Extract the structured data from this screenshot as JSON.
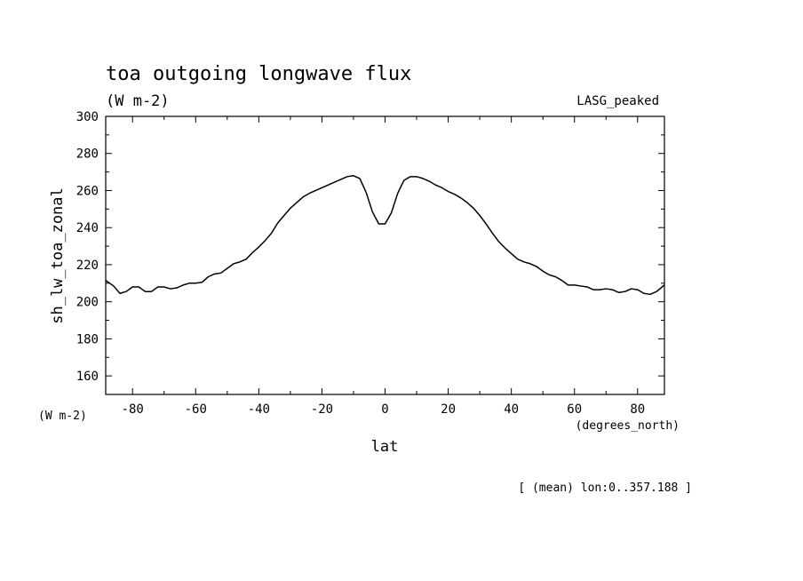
{
  "chart_data": {
    "type": "line",
    "title": "toa outgoing longwave flux",
    "subtitle": "(W m-2)",
    "model_label": "LASG_peaked",
    "xlabel": "lat",
    "ylabel": "sh_lw_toa_zonal",
    "x_units": "(degrees_north)",
    "y_units": "(W m-2)",
    "footnote": "[ (mean) lon:0..357.188 ]",
    "xlim": [
      -88.5,
      88.5
    ],
    "ylim": [
      150,
      300
    ],
    "x_ticks": [
      -80,
      -60,
      -40,
      -20,
      0,
      20,
      40,
      60,
      80
    ],
    "x_tick_labels": [
      "-80",
      "-60",
      "-40",
      "-20",
      "0",
      "20",
      "40",
      "60",
      "80"
    ],
    "y_ticks": [
      160,
      180,
      200,
      220,
      240,
      260,
      280,
      300
    ],
    "y_tick_labels": [
      "160",
      "180",
      "200",
      "220",
      "240",
      "260",
      "280",
      "300"
    ],
    "grid": false,
    "line_color": "#000000",
    "series": [
      {
        "x": [
          -88.5,
          -86,
          -84,
          -82,
          -80,
          -78,
          -76,
          -74,
          -72,
          -70,
          -68,
          -66,
          -64,
          -62,
          -60,
          -58,
          -56,
          -54,
          -52,
          -50,
          -48,
          -46,
          -44,
          -42,
          -40,
          -38,
          -36,
          -34,
          -32,
          -30,
          -28,
          -26,
          -24,
          -22,
          -20,
          -18,
          -16,
          -14,
          -12,
          -10,
          -8,
          -6,
          -4,
          -2,
          0,
          2,
          4,
          6,
          8,
          10,
          12,
          14,
          16,
          18,
          20,
          22,
          24,
          26,
          28,
          30,
          32,
          34,
          36,
          38,
          40,
          42,
          44,
          46,
          48,
          50,
          52,
          54,
          56,
          58,
          60,
          62,
          64,
          66,
          68,
          70,
          72,
          74,
          76,
          78,
          80,
          82,
          84,
          86,
          88.5
        ],
        "y": [
          211.5,
          208.5,
          204.5,
          205.5,
          208,
          208,
          205.5,
          205.5,
          208,
          208,
          207,
          207.5,
          209,
          210,
          210,
          210.5,
          213.5,
          215,
          215.5,
          218,
          220.5,
          221.5,
          223,
          226.5,
          229.5,
          233,
          237,
          242.5,
          246.5,
          250.5,
          253.5,
          256.5,
          258.5,
          260,
          261.5,
          263,
          264.5,
          266,
          267.5,
          268,
          266.5,
          259,
          248.5,
          242,
          242,
          248,
          258.5,
          265.5,
          267.5,
          267.5,
          266.5,
          265,
          263,
          261.5,
          259.5,
          258,
          256,
          253.5,
          250.5,
          246.5,
          242,
          237,
          232.5,
          229,
          226,
          223,
          221.5,
          220.5,
          219,
          216.5,
          214.5,
          213.5,
          211.5,
          209,
          209,
          208.5,
          208,
          206.5,
          206.5,
          207,
          206.5,
          205,
          205.5,
          207,
          206.5,
          204.5,
          204,
          205.5,
          209
        ]
      }
    ]
  }
}
